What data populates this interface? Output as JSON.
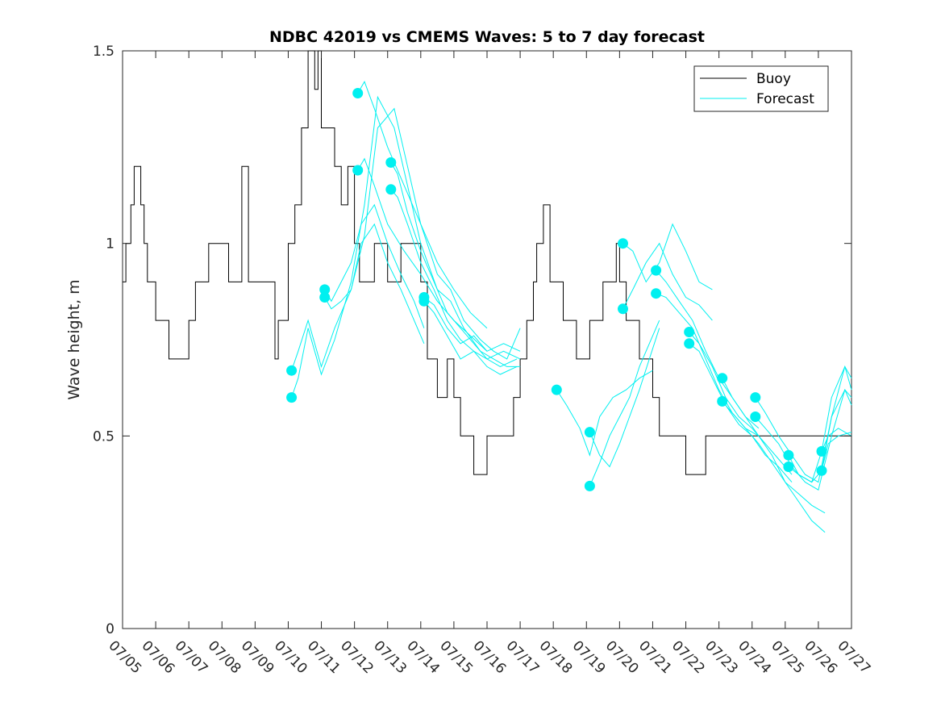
{
  "chart_data": {
    "type": "line",
    "title": "NDBC 42019 vs CMEMS Waves: 5 to 7 day forecast",
    "ylabel": "Wave height, m",
    "xlabel": "",
    "x_tick_labels": [
      "07/05",
      "07/06",
      "07/07",
      "07/08",
      "07/09",
      "07/10",
      "07/11",
      "07/12",
      "07/13",
      "07/14",
      "07/15",
      "07/16",
      "07/17",
      "07/18",
      "07/19",
      "07/20",
      "07/21",
      "07/22",
      "07/23",
      "07/24",
      "07/25",
      "07/26",
      "07/27"
    ],
    "y_ticks": [
      0,
      0.5,
      1,
      1.5
    ],
    "y_tick_labels": [
      "0",
      "0.5",
      "1",
      "1.5"
    ],
    "xlim_days": [
      0,
      22
    ],
    "ylim": [
      0,
      1.5
    ],
    "x_unit": "days since 07/05",
    "legend": {
      "position": "top-right",
      "entries": [
        "Buoy",
        "Forecast"
      ]
    },
    "colors": {
      "buoy": "#000000",
      "forecast": "#00f0f0"
    },
    "buoy": {
      "name": "Buoy",
      "x": [
        0,
        0.1,
        0.25,
        0.35,
        0.45,
        0.55,
        0.65,
        0.75,
        0.85,
        1.0,
        1.2,
        1.4,
        1.6,
        1.8,
        2.0,
        2.2,
        2.4,
        2.6,
        2.8,
        3.0,
        3.2,
        3.4,
        3.6,
        3.8,
        4.0,
        4.2,
        4.4,
        4.6,
        4.6,
        4.7,
        4.8,
        5.0,
        5.2,
        5.4,
        5.6,
        5.8,
        5.9,
        6.0,
        6.2,
        6.4,
        6.6,
        6.8,
        7.0,
        7.15,
        7.3,
        7.45,
        7.6,
        7.8,
        8.0,
        8.2,
        8.4,
        8.6,
        8.8,
        9.0,
        9.2,
        9.5,
        9.8,
        10.0,
        10.2,
        10.4,
        10.6,
        10.8,
        11.0,
        11.2,
        11.4,
        11.6,
        11.8,
        12.0,
        12.2,
        12.4,
        12.5,
        12.7,
        12.9,
        13.1,
        13.3,
        13.5,
        13.7,
        13.9,
        14.1,
        14.3,
        14.5,
        14.7,
        14.9,
        15.0,
        15.2,
        15.4,
        15.6,
        15.8,
        16.0,
        16.2,
        16.4,
        16.6,
        16.8,
        17.0,
        17.2,
        17.4,
        17.6,
        17.8,
        18.0,
        18.2,
        18.4,
        18.6,
        18.8,
        19.0,
        19.2,
        19.4,
        19.6,
        19.8,
        20.0,
        20.2,
        20.4,
        20.6,
        20.8,
        21.0,
        21.2,
        21.4,
        21.6,
        21.8,
        22.0
      ],
      "y": [
        0.9,
        1.0,
        1.1,
        1.2,
        1.2,
        1.1,
        1.0,
        0.9,
        0.9,
        0.8,
        0.8,
        0.7,
        0.7,
        0.7,
        0.8,
        0.9,
        0.9,
        1.0,
        1.0,
        1.0,
        0.9,
        0.9,
        1.2,
        0.9,
        0.9,
        0.9,
        0.9,
        0.9,
        0.7,
        0.8,
        0.8,
        1.0,
        1.1,
        1.3,
        1.5,
        1.4,
        1.5,
        1.3,
        1.3,
        1.2,
        1.1,
        1.2,
        1.0,
        0.9,
        0.9,
        0.9,
        1.0,
        1.0,
        0.9,
        0.9,
        1.0,
        1.0,
        1.0,
        0.9,
        0.7,
        0.6,
        0.7,
        0.6,
        0.5,
        0.5,
        0.4,
        0.4,
        0.5,
        0.5,
        0.5,
        0.5,
        0.6,
        0.7,
        0.8,
        0.9,
        1.0,
        1.1,
        0.9,
        0.9,
        0.8,
        0.8,
        0.7,
        0.7,
        0.8,
        0.8,
        0.9,
        0.9,
        1.0,
        0.9,
        0.8,
        0.8,
        0.7,
        0.7,
        0.6,
        0.5,
        0.5,
        0.5,
        0.5,
        0.4,
        0.4,
        0.4,
        0.5,
        0.5,
        0.5,
        0.5,
        0.5,
        0.5,
        0.5,
        0.5,
        0.5,
        0.5,
        0.5,
        0.5,
        0.5,
        0.5,
        0.5,
        0.5,
        0.5,
        0.5,
        0.5,
        0.5,
        0.5,
        0.5,
        0.5
      ]
    },
    "forecast_series": [
      {
        "x": [
          5.1,
          5.3,
          5.6,
          6.0,
          6.4,
          6.9,
          7.3,
          7.7,
          8.2,
          8.6,
          9.0,
          9.5,
          9.9,
          10.3,
          10.8,
          11.2,
          11.6,
          12.0
        ],
        "y": [
          0.67,
          0.72,
          0.8,
          0.68,
          0.78,
          0.88,
          1.02,
          1.3,
          1.35,
          1.2,
          1.05,
          0.92,
          0.88,
          0.8,
          0.75,
          0.72,
          0.7,
          0.78
        ]
      },
      {
        "x": [
          5.1,
          5.3,
          5.6,
          6.0,
          6.4,
          6.9,
          7.3,
          7.7,
          8.2,
          8.6,
          9.0,
          9.5,
          9.9,
          10.3,
          10.8,
          11.2,
          11.6,
          12.0
        ],
        "y": [
          0.6,
          0.65,
          0.78,
          0.66,
          0.75,
          0.9,
          1.1,
          1.38,
          1.3,
          1.15,
          1.0,
          0.88,
          0.85,
          0.78,
          0.72,
          0.7,
          0.68,
          0.68
        ]
      },
      {
        "x": [
          6.1,
          6.3,
          6.6,
          6.9,
          7.2,
          7.6,
          8.0,
          8.4,
          8.8,
          9.1
        ],
        "y": [
          0.88,
          0.85,
          0.9,
          0.95,
          1.05,
          1.1,
          1.0,
          0.92,
          0.85,
          0.78
        ]
      },
      {
        "x": [
          6.1,
          6.3,
          6.6,
          6.9,
          7.2,
          7.6,
          8.0,
          8.4,
          8.8,
          9.1
        ],
        "y": [
          0.86,
          0.83,
          0.85,
          0.88,
          1.0,
          1.05,
          0.95,
          0.88,
          0.8,
          0.74
        ]
      },
      {
        "x": [
          7.1,
          7.3,
          7.6,
          8.0,
          8.5,
          9.0,
          9.5,
          10.0,
          10.5,
          11.0
        ],
        "y": [
          1.19,
          1.22,
          1.15,
          1.05,
          0.98,
          0.92,
          0.85,
          0.8,
          0.76,
          0.72
        ]
      },
      {
        "x": [
          7.1,
          7.3,
          7.6,
          8.0,
          8.5,
          9.0,
          9.5,
          10.0,
          10.5,
          11.0
        ],
        "y": [
          1.39,
          1.42,
          1.35,
          1.25,
          1.15,
          1.05,
          0.95,
          0.88,
          0.82,
          0.78
        ]
      },
      {
        "x": [
          8.1,
          8.3,
          8.6,
          9.0,
          9.4,
          9.8,
          10.2,
          10.6,
          11.0,
          11.4,
          11.9
        ],
        "y": [
          1.21,
          1.18,
          1.08,
          0.98,
          0.9,
          0.82,
          0.78,
          0.74,
          0.7,
          0.68,
          0.7
        ]
      },
      {
        "x": [
          8.1,
          8.3,
          8.6,
          9.0,
          9.4,
          9.8,
          10.2,
          10.6,
          11.0,
          11.4,
          11.9
        ],
        "y": [
          1.14,
          1.12,
          1.05,
          0.95,
          0.88,
          0.8,
          0.75,
          0.72,
          0.68,
          0.66,
          0.68
        ]
      },
      {
        "x": [
          9.1,
          9.4,
          9.8,
          10.2,
          10.6,
          11.0,
          11.5,
          12.0
        ],
        "y": [
          0.86,
          0.84,
          0.78,
          0.74,
          0.76,
          0.72,
          0.74,
          0.72
        ]
      },
      {
        "x": [
          9.1,
          9.4,
          9.8,
          10.2,
          10.6,
          11.0,
          11.5,
          12.0
        ],
        "y": [
          0.85,
          0.82,
          0.76,
          0.7,
          0.72,
          0.7,
          0.72,
          0.7
        ]
      },
      {
        "x": [
          13.1,
          13.4,
          13.8,
          14.1,
          14.4,
          14.8,
          15.2,
          15.6,
          16.0
        ],
        "y": [
          0.62,
          0.58,
          0.52,
          0.45,
          0.55,
          0.6,
          0.62,
          0.65,
          0.67
        ]
      },
      {
        "x": [
          14.1,
          14.4,
          14.7,
          15.0,
          15.3,
          15.6,
          15.9,
          16.2
        ],
        "y": [
          0.51,
          0.45,
          0.42,
          0.48,
          0.55,
          0.62,
          0.7,
          0.78
        ]
      },
      {
        "x": [
          14.1,
          14.4,
          14.7,
          15.0,
          15.3,
          15.6,
          15.9,
          16.2
        ],
        "y": [
          0.37,
          0.43,
          0.5,
          0.55,
          0.6,
          0.68,
          0.74,
          0.8
        ]
      },
      {
        "x": [
          15.1,
          15.4,
          15.8,
          16.2,
          16.6,
          17.0,
          17.4,
          17.8
        ],
        "y": [
          1.0,
          0.98,
          0.9,
          0.95,
          1.05,
          0.98,
          0.9,
          0.88
        ]
      },
      {
        "x": [
          15.1,
          15.4,
          15.8,
          16.2,
          16.6,
          17.0,
          17.4,
          17.8
        ],
        "y": [
          0.83,
          0.88,
          0.95,
          1.0,
          0.92,
          0.86,
          0.84,
          0.8
        ]
      },
      {
        "x": [
          16.1,
          16.4,
          16.8,
          17.2,
          17.6,
          18.0,
          18.4,
          18.8,
          19.2
        ],
        "y": [
          0.93,
          0.9,
          0.85,
          0.8,
          0.72,
          0.65,
          0.6,
          0.55,
          0.52
        ]
      },
      {
        "x": [
          16.1,
          16.4,
          16.8,
          17.2,
          17.6,
          18.0,
          18.4,
          18.8,
          19.2
        ],
        "y": [
          0.87,
          0.86,
          0.82,
          0.78,
          0.7,
          0.62,
          0.56,
          0.52,
          0.5
        ]
      },
      {
        "x": [
          17.1,
          17.4,
          17.8,
          18.2,
          18.6,
          19.0,
          19.4,
          19.8,
          20.2
        ],
        "y": [
          0.77,
          0.74,
          0.68,
          0.6,
          0.55,
          0.52,
          0.48,
          0.44,
          0.4
        ]
      },
      {
        "x": [
          17.1,
          17.4,
          17.8,
          18.2,
          18.6,
          19.0,
          19.4,
          19.8,
          20.2
        ],
        "y": [
          0.74,
          0.72,
          0.65,
          0.58,
          0.53,
          0.5,
          0.45,
          0.42,
          0.38
        ]
      },
      {
        "x": [
          18.1,
          18.4,
          18.8,
          19.2,
          19.6,
          20.0,
          20.4,
          20.8,
          21.2
        ],
        "y": [
          0.65,
          0.6,
          0.55,
          0.5,
          0.45,
          0.38,
          0.33,
          0.28,
          0.25
        ]
      },
      {
        "x": [
          18.1,
          18.4,
          18.8,
          19.2,
          19.6,
          20.0,
          20.4,
          20.8,
          21.2
        ],
        "y": [
          0.59,
          0.56,
          0.52,
          0.48,
          0.43,
          0.38,
          0.35,
          0.32,
          0.3
        ]
      },
      {
        "x": [
          19.1,
          19.4,
          19.8,
          20.2,
          20.6,
          21.0,
          21.4,
          21.8,
          22.0
        ],
        "y": [
          0.6,
          0.56,
          0.5,
          0.45,
          0.4,
          0.38,
          0.55,
          0.68,
          0.65
        ]
      },
      {
        "x": [
          19.1,
          19.4,
          19.8,
          20.2,
          20.6,
          21.0,
          21.4,
          21.8,
          22.0
        ],
        "y": [
          0.55,
          0.52,
          0.48,
          0.42,
          0.38,
          0.36,
          0.5,
          0.62,
          0.6
        ]
      },
      {
        "x": [
          20.1,
          20.4,
          20.8,
          21.1,
          21.4,
          21.8,
          22.0
        ],
        "y": [
          0.45,
          0.4,
          0.38,
          0.46,
          0.6,
          0.68,
          0.62
        ]
      },
      {
        "x": [
          20.1,
          20.4,
          20.8,
          21.1,
          21.4,
          21.8,
          22.0
        ],
        "y": [
          0.42,
          0.4,
          0.38,
          0.41,
          0.55,
          0.62,
          0.58
        ]
      },
      {
        "x": [
          21.1,
          21.3,
          21.6,
          22.0
        ],
        "y": [
          0.46,
          0.5,
          0.52,
          0.5
        ]
      },
      {
        "x": [
          21.1,
          21.3,
          21.6,
          22.0
        ],
        "y": [
          0.41,
          0.48,
          0.5,
          0.51
        ]
      }
    ],
    "forecast_markers": [
      {
        "x": 5.1,
        "y": 0.67
      },
      {
        "x": 5.1,
        "y": 0.6
      },
      {
        "x": 6.1,
        "y": 0.88
      },
      {
        "x": 6.1,
        "y": 0.86
      },
      {
        "x": 7.1,
        "y": 1.39
      },
      {
        "x": 7.1,
        "y": 1.19
      },
      {
        "x": 8.1,
        "y": 1.21
      },
      {
        "x": 8.1,
        "y": 1.14
      },
      {
        "x": 9.1,
        "y": 0.86
      },
      {
        "x": 9.1,
        "y": 0.85
      },
      {
        "x": 13.1,
        "y": 0.62
      },
      {
        "x": 14.1,
        "y": 0.51
      },
      {
        "x": 14.1,
        "y": 0.37
      },
      {
        "x": 15.1,
        "y": 1.0
      },
      {
        "x": 15.1,
        "y": 0.83
      },
      {
        "x": 16.1,
        "y": 0.93
      },
      {
        "x": 16.1,
        "y": 0.87
      },
      {
        "x": 17.1,
        "y": 0.77
      },
      {
        "x": 17.1,
        "y": 0.74
      },
      {
        "x": 18.1,
        "y": 0.65
      },
      {
        "x": 18.1,
        "y": 0.59
      },
      {
        "x": 19.1,
        "y": 0.6
      },
      {
        "x": 19.1,
        "y": 0.55
      },
      {
        "x": 20.1,
        "y": 0.45
      },
      {
        "x": 20.1,
        "y": 0.42
      },
      {
        "x": 21.1,
        "y": 0.46
      },
      {
        "x": 21.1,
        "y": 0.41
      }
    ]
  }
}
